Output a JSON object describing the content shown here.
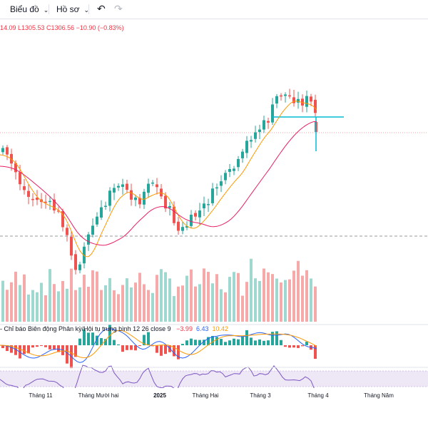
{
  "toolbar": {
    "chart_label": "Biểu đồ",
    "profile_label": "Hồ sơ"
  },
  "ohlc_text": "14.09  L1305.53  C1306.56  −10.90 (−0.83%)",
  "macd": {
    "label": "- Chỉ báo Biên động Phân kỳ/Hội tụ trung bình  12 26 close 9",
    "v1": "−3.99",
    "v2": "6.43",
    "v3": "10.42"
  },
  "x_axis": [
    {
      "label": "Tháng 11",
      "bold": false
    },
    {
      "label": "Tháng Mười hai",
      "bold": false
    },
    {
      "label": "2025",
      "bold": true
    },
    {
      "label": "Tháng Hai",
      "bold": false
    },
    {
      "label": "Tháng 3",
      "bold": false
    },
    {
      "label": "Tháng 4",
      "bold": false
    },
    {
      "label": "Tháng Năm",
      "bold": false
    }
  ],
  "colors": {
    "up": "#26a69a",
    "down": "#ef5350",
    "vol_up": "#9fd8cf",
    "vol_down": "#f5a9a9",
    "ma_fast": "#ff9800",
    "ma_slow": "#e91e63",
    "macd_line": "#2962ff",
    "signal_line": "#ff9800",
    "rsi_line": "#7e57c2",
    "rsi_band": "#ede7f6",
    "cyan": "#00bcd4"
  }
}
